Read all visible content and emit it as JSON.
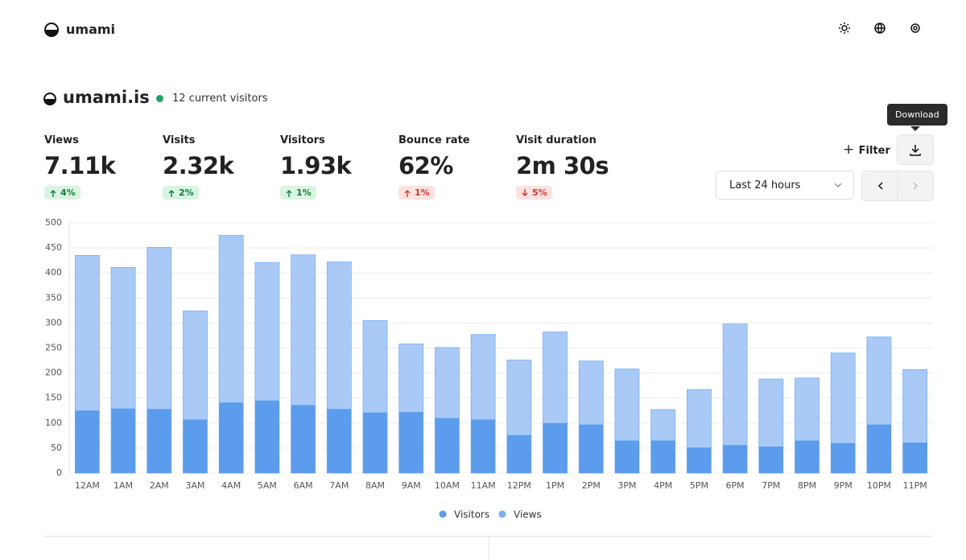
{
  "header": {
    "brand": "umami"
  },
  "website": {
    "name": "umami.is",
    "live": "12 current visitors"
  },
  "metrics": [
    {
      "label": "Views",
      "value": "7.11k",
      "change": "4%",
      "direction": "up",
      "tone": "positive"
    },
    {
      "label": "Visits",
      "value": "2.32k",
      "change": "2%",
      "direction": "up",
      "tone": "positive"
    },
    {
      "label": "Visitors",
      "value": "1.93k",
      "change": "1%",
      "direction": "up",
      "tone": "positive"
    },
    {
      "label": "Bounce rate",
      "value": "62%",
      "change": "1%",
      "direction": "up",
      "tone": "negative"
    },
    {
      "label": "Visit duration",
      "value": "2m 30s",
      "change": "5%",
      "direction": "down",
      "tone": "negative"
    }
  ],
  "controls": {
    "tooltip": "Download",
    "filter": "Filter",
    "range": "Last 24 hours"
  },
  "chart_data": {
    "type": "bar",
    "overlay": true,
    "grid": true,
    "categories": [
      "12AM",
      "1AM",
      "2AM",
      "3AM",
      "4AM",
      "5AM",
      "6AM",
      "7AM",
      "8AM",
      "9AM",
      "10AM",
      "11AM",
      "12PM",
      "1PM",
      "2PM",
      "3PM",
      "4PM",
      "5PM",
      "6PM",
      "7PM",
      "8PM",
      "9PM",
      "10PM",
      "11PM"
    ],
    "series": [
      {
        "name": "Visitors",
        "color": "#5b9cec",
        "values": [
          125,
          129,
          128,
          107,
          141,
          145,
          136,
          128,
          121,
          122,
          110,
          107,
          76,
          100,
          97,
          65,
          65,
          51,
          56,
          53,
          65,
          60,
          97,
          61
        ]
      },
      {
        "name": "Views",
        "color": "#a9caf6",
        "values": [
          435,
          411,
          451,
          324,
          475,
          421,
          436,
          422,
          305,
          258,
          251,
          277,
          226,
          282,
          224,
          208,
          127,
          167,
          298,
          188,
          190,
          240,
          272,
          207
        ]
      }
    ],
    "ylim": [
      0,
      500
    ],
    "yticks": [
      0,
      50,
      100,
      150,
      200,
      250,
      300,
      350,
      400,
      450,
      500
    ],
    "legend": "bottom"
  }
}
